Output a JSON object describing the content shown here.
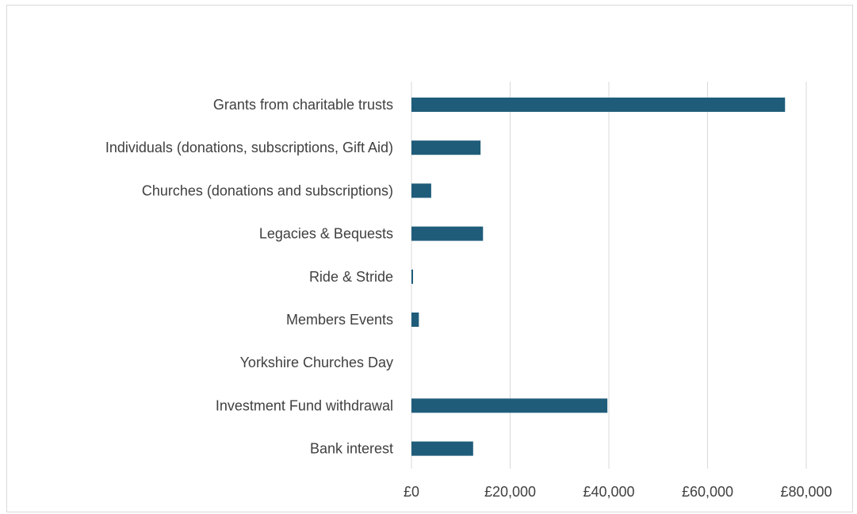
{
  "chart_data": {
    "type": "bar",
    "orientation": "horizontal",
    "title": "",
    "xlabel": "",
    "ylabel": "",
    "categories": [
      "Grants from charitable trusts",
      "Individuals (donations, subscriptions, Gift Aid)",
      "Churches (donations and subscriptions)",
      "Legacies & Bequests",
      "Ride & Stride",
      "Members Events",
      "Yorkshire Churches Day",
      "Investment Fund withdrawal",
      "Bank interest"
    ],
    "values": [
      75700,
      14000,
      4000,
      14500,
      300,
      1500,
      0,
      39700,
      12500
    ],
    "xlim": [
      0,
      80000
    ],
    "x_ticks": [
      0,
      20000,
      40000,
      60000,
      80000
    ],
    "x_tick_labels": [
      "£0",
      "£20,000",
      "£40,000",
      "£60,000",
      "£80,000"
    ],
    "grid": "vertical",
    "legend": "none",
    "bar_color": "#1f5c7a"
  }
}
